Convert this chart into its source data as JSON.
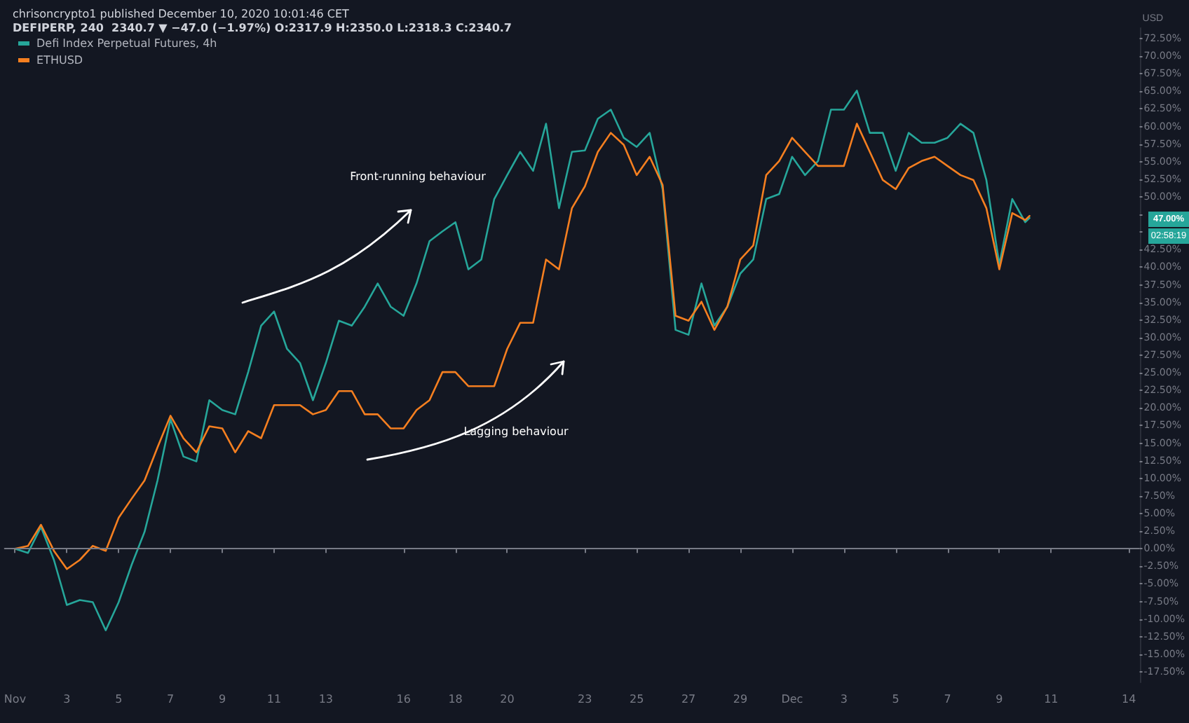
{
  "chart_data": {
    "type": "line",
    "title": "chrisoncrypto1 published December 10, 2020 10:01:46 CET",
    "subtitle": "DEFIPERP, 240  2340.7 ▼ −47.0 (−1.97%) O:2317.9 H:2350.0 L:2318.3 C:2340.7",
    "ylabel": "USD",
    "x": [
      "2020-11-01T00:00",
      "2020-11-01T12:00",
      "2020-11-02T00:00",
      "2020-11-02T12:00",
      "2020-11-03T00:00",
      "2020-11-03T12:00",
      "2020-11-04T00:00",
      "2020-11-04T12:00",
      "2020-11-05T00:00",
      "2020-11-05T12:00",
      "2020-11-06T00:00",
      "2020-11-06T12:00",
      "2020-11-07T00:00",
      "2020-11-07T12:00",
      "2020-11-08T00:00",
      "2020-11-08T12:00",
      "2020-11-09T00:00",
      "2020-11-09T12:00",
      "2020-11-10T00:00",
      "2020-11-10T12:00",
      "2020-11-11T00:00",
      "2020-11-11T12:00",
      "2020-11-12T00:00",
      "2020-11-12T12:00",
      "2020-11-13T00:00",
      "2020-11-13T12:00",
      "2020-11-14T00:00",
      "2020-11-14T12:00",
      "2020-11-15T00:00",
      "2020-11-15T12:00",
      "2020-11-16T00:00",
      "2020-11-16T12:00",
      "2020-11-17T00:00",
      "2020-11-17T12:00",
      "2020-11-18T00:00",
      "2020-11-18T12:00",
      "2020-11-19T00:00",
      "2020-11-19T12:00",
      "2020-11-20T00:00",
      "2020-11-20T12:00",
      "2020-11-21T00:00",
      "2020-11-21T12:00",
      "2020-11-22T00:00",
      "2020-11-22T12:00",
      "2020-11-23T00:00",
      "2020-11-23T12:00",
      "2020-11-24T00:00",
      "2020-11-24T12:00",
      "2020-11-25T00:00",
      "2020-11-25T12:00",
      "2020-11-26T00:00",
      "2020-11-26T12:00",
      "2020-11-27T00:00",
      "2020-11-27T12:00",
      "2020-11-28T00:00",
      "2020-11-28T12:00",
      "2020-11-29T00:00",
      "2020-11-29T12:00",
      "2020-11-30T00:00",
      "2020-11-30T12:00",
      "2020-12-01T00:00",
      "2020-12-01T12:00",
      "2020-12-02T00:00",
      "2020-12-02T12:00",
      "2020-12-03T00:00",
      "2020-12-03T12:00",
      "2020-12-04T00:00",
      "2020-12-04T12:00",
      "2020-12-05T00:00",
      "2020-12-05T12:00",
      "2020-12-06T00:00",
      "2020-12-06T12:00",
      "2020-12-07T00:00",
      "2020-12-07T12:00",
      "2020-12-08T00:00",
      "2020-12-08T12:00",
      "2020-12-09T00:00",
      "2020-12-09T12:00",
      "2020-12-10T00:00",
      "2020-12-10T04:00"
    ],
    "series": [
      {
        "name": "Defi Index Perpetual Futures, 4h",
        "color": "#26a69a",
        "values": [
          0,
          -0.6,
          3.1,
          -1.6,
          -8.0,
          -7.3,
          -7.6,
          -11.6,
          -7.6,
          -2.3,
          2.4,
          9.7,
          18.4,
          13.1,
          12.4,
          21.1,
          19.7,
          19.1,
          25.1,
          31.7,
          33.7,
          28.4,
          26.4,
          21.1,
          26.4,
          32.4,
          31.7,
          34.4,
          37.7,
          34.4,
          33.1,
          37.7,
          43.7,
          45.1,
          46.4,
          39.7,
          41.1,
          49.7,
          53.1,
          56.4,
          53.7,
          60.4,
          48.4,
          56.4,
          56.6,
          61.1,
          62.4,
          58.4,
          57.1,
          59.1,
          51.1,
          31.1,
          30.4,
          37.7,
          31.7,
          34.4,
          39.1,
          41.1,
          49.7,
          50.4,
          55.7,
          53.1,
          55.1,
          62.4,
          62.4,
          65.1,
          59.1,
          59.1,
          53.7,
          59.1,
          57.7,
          57.7,
          58.4,
          60.4,
          59.1,
          52.4,
          40.4,
          49.7,
          46.4,
          47.0
        ]
      },
      {
        "name": "ETHUSD",
        "color": "#f57f20",
        "values": [
          0,
          0.4,
          3.4,
          -0.3,
          -2.9,
          -1.6,
          0.4,
          -0.3,
          4.4,
          7.1,
          9.7,
          14.4,
          18.9,
          15.7,
          13.7,
          17.4,
          17.1,
          13.7,
          16.7,
          15.7,
          20.4,
          20.4,
          20.4,
          19.1,
          19.7,
          22.4,
          22.4,
          19.1,
          19.1,
          17.1,
          17.1,
          19.7,
          21.1,
          25.1,
          25.1,
          23.1,
          23.1,
          23.1,
          28.4,
          32.1,
          32.1,
          41.1,
          39.7,
          48.4,
          51.5,
          56.4,
          59.1,
          57.4,
          53.1,
          55.7,
          51.7,
          33.1,
          32.4,
          35.1,
          31.1,
          34.4,
          41.1,
          43.1,
          53.1,
          55.1,
          58.4,
          56.4,
          54.4,
          54.4,
          54.4,
          60.4,
          56.4,
          52.4,
          51.1,
          54.1,
          55.1,
          55.7,
          54.4,
          53.1,
          52.4,
          48.4,
          39.7,
          47.7,
          46.7,
          47.3
        ]
      }
    ],
    "xlim": [
      "2020-10-31T14:00",
      "2020-12-14T10:00"
    ],
    "xticks": [
      {
        "value": "2020-11-01",
        "label": "Nov"
      },
      {
        "value": "2020-11-03",
        "label": "3"
      },
      {
        "value": "2020-11-05",
        "label": "5"
      },
      {
        "value": "2020-11-07",
        "label": "7"
      },
      {
        "value": "2020-11-09",
        "label": "9"
      },
      {
        "value": "2020-11-11",
        "label": "11"
      },
      {
        "value": "2020-11-13",
        "label": "13"
      },
      {
        "value": "2020-11-16",
        "label": "16"
      },
      {
        "value": "2020-11-18",
        "label": "18"
      },
      {
        "value": "2020-11-20",
        "label": "20"
      },
      {
        "value": "2020-11-23",
        "label": "23"
      },
      {
        "value": "2020-11-25",
        "label": "25"
      },
      {
        "value": "2020-11-27",
        "label": "27"
      },
      {
        "value": "2020-11-29",
        "label": "29"
      },
      {
        "value": "2020-12-01",
        "label": "Dec"
      },
      {
        "value": "2020-12-03",
        "label": "3"
      },
      {
        "value": "2020-12-05",
        "label": "5"
      },
      {
        "value": "2020-12-07",
        "label": "7"
      },
      {
        "value": "2020-12-09",
        "label": "9"
      },
      {
        "value": "2020-12-11",
        "label": "11"
      },
      {
        "value": "2020-12-14",
        "label": "14"
      }
    ],
    "ylim": [
      -19,
      74
    ],
    "yticks": [
      {
        "value": -17.5,
        "label": "-17.50%"
      },
      {
        "value": -15,
        "label": "-15.00%"
      },
      {
        "value": -12.5,
        "label": "-12.50%"
      },
      {
        "value": -10,
        "label": "-10.00%"
      },
      {
        "value": -7.5,
        "label": "-7.50%"
      },
      {
        "value": -5,
        "label": "-5.00%"
      },
      {
        "value": -2.5,
        "label": "-2.50%"
      },
      {
        "value": 0,
        "label": "0.00%"
      },
      {
        "value": 2.5,
        "label": "2.50%"
      },
      {
        "value": 5,
        "label": "5.00%"
      },
      {
        "value": 7.5,
        "label": "7.50%"
      },
      {
        "value": 10,
        "label": "10.00%"
      },
      {
        "value": 12.5,
        "label": "12.50%"
      },
      {
        "value": 15,
        "label": "15.00%"
      },
      {
        "value": 17.5,
        "label": "17.50%"
      },
      {
        "value": 20,
        "label": "20.00%"
      },
      {
        "value": 22.5,
        "label": "22.50%"
      },
      {
        "value": 25,
        "label": "25.00%"
      },
      {
        "value": 27.5,
        "label": "27.50%"
      },
      {
        "value": 30,
        "label": "30.00%"
      },
      {
        "value": 32.5,
        "label": "32.50%"
      },
      {
        "value": 35,
        "label": "35.00%"
      },
      {
        "value": 37.5,
        "label": "37.50%"
      },
      {
        "value": 40,
        "label": "40.00%"
      },
      {
        "value": 42.5,
        "label": "42.50%"
      },
      {
        "value": 45,
        "label": null
      },
      {
        "value": 47.5,
        "label": null
      },
      {
        "value": 50,
        "label": "50.00%"
      },
      {
        "value": 52.5,
        "label": "52.50%"
      },
      {
        "value": 55,
        "label": "55.00%"
      },
      {
        "value": 57.5,
        "label": "57.50%"
      },
      {
        "value": 60,
        "label": "60.00%"
      },
      {
        "value": 62.5,
        "label": "62.50%"
      },
      {
        "value": 65,
        "label": "65.00%"
      },
      {
        "value": 67.5,
        "label": "67.50%"
      },
      {
        "value": 70,
        "label": "70.00%"
      },
      {
        "value": 72.5,
        "label": "72.50%"
      }
    ],
    "ref_lines": [
      {
        "axis": "y",
        "value": 0,
        "color": "#787b86"
      }
    ],
    "legend": "top left",
    "annotations": [
      "Front-running behaviour",
      "Lagging behaviour",
      "47.00%",
      "02:58:19"
    ]
  }
}
